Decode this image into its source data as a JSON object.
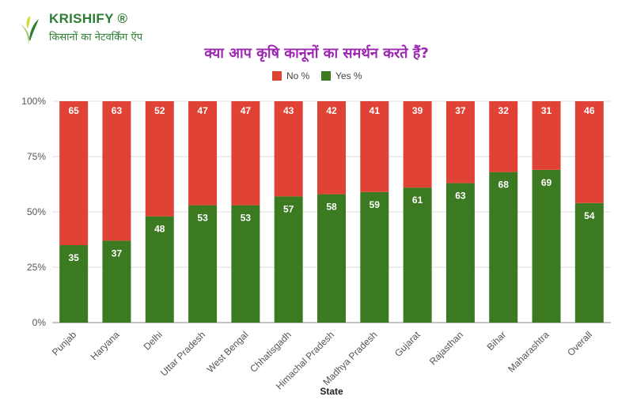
{
  "brand": {
    "name": "KRISHIFY ®",
    "tagline": "किसानों का नेटवर्किंग ऍप"
  },
  "chart_data": {
    "type": "bar",
    "stacked": true,
    "title": "क्या आप कृषि कानूनों का समर्थन करते हैं?",
    "xlabel": "State",
    "ylabel": "",
    "ylim": [
      0,
      100
    ],
    "yticks": [
      "0%",
      "25%",
      "50%",
      "75%",
      "100%"
    ],
    "categories": [
      "Punjab",
      "Haryana",
      "Delhi",
      "Uttar Pradesh",
      "West Bengal",
      "Chhatisgadh",
      "Himachal Pradesh",
      "Madhya Pradesh",
      "Gujarat",
      "Rajasthan",
      "Bihar",
      "Maharashtra",
      "Overall"
    ],
    "series": [
      {
        "name": "Yes %",
        "color": "#3c7a22",
        "values": [
          35,
          37,
          48,
          53,
          53,
          57,
          58,
          59,
          61,
          63,
          68,
          69,
          54
        ]
      },
      {
        "name": "No %",
        "color": "#e04236",
        "values": [
          65,
          63,
          52,
          47,
          47,
          43,
          42,
          41,
          39,
          37,
          32,
          31,
          46
        ]
      }
    ],
    "legend": {
      "position": "top",
      "order": [
        "No %",
        "Yes %"
      ]
    }
  }
}
